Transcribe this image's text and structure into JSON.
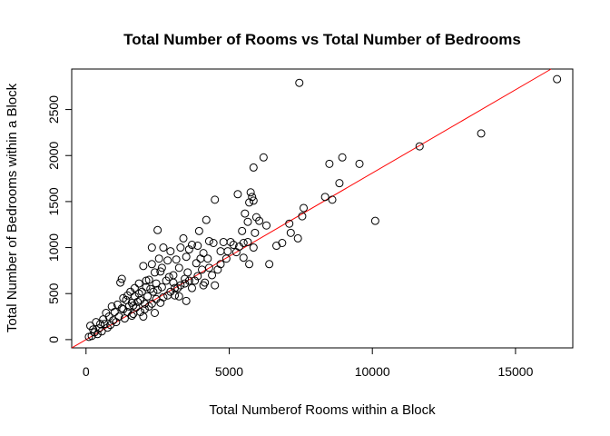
{
  "chart_data": {
    "type": "scatter",
    "title": "Total Number of Rooms vs Total Number of Bedrooms",
    "xlabel": "Total Numberof Rooms within a Block",
    "ylabel": "Total Number of Bedrooms within a Block",
    "xlim": [
      -500,
      17000
    ],
    "ylim": [
      -90,
      2940
    ],
    "xticks": [
      0,
      5000,
      10000,
      15000
    ],
    "yticks": [
      0,
      500,
      1000,
      1500,
      2000,
      2500
    ],
    "grid": false,
    "legend": "none",
    "marker": "open-circle",
    "points": [
      [
        16450,
        2830
      ],
      [
        13800,
        2240
      ],
      [
        11650,
        2100
      ],
      [
        7450,
        2790
      ],
      [
        9550,
        1910
      ],
      [
        8950,
        1980
      ],
      [
        8500,
        1910
      ],
      [
        8850,
        1700
      ],
      [
        8600,
        1520
      ],
      [
        8350,
        1550
      ],
      [
        10100,
        1290
      ],
      [
        7600,
        1430
      ],
      [
        7550,
        1340
      ],
      [
        7400,
        1100
      ],
      [
        7100,
        1260
      ],
      [
        7150,
        1160
      ],
      [
        6850,
        1050
      ],
      [
        6650,
        1020
      ],
      [
        6400,
        820
      ],
      [
        6200,
        1980
      ],
      [
        5850,
        1870
      ],
      [
        6300,
        1240
      ],
      [
        5950,
        1330
      ],
      [
        6050,
        1290
      ],
      [
        5300,
        1580
      ],
      [
        5750,
        1600
      ],
      [
        5800,
        1550
      ],
      [
        5850,
        1510
      ],
      [
        5700,
        1490
      ],
      [
        5900,
        1160
      ],
      [
        5850,
        1000
      ],
      [
        5650,
        1280
      ],
      [
        5550,
        1370
      ],
      [
        5450,
        1180
      ],
      [
        5650,
        1060
      ],
      [
        5500,
        890
      ],
      [
        5700,
        820
      ],
      [
        5500,
        1050
      ],
      [
        5350,
        1010
      ],
      [
        5250,
        950
      ],
      [
        5150,
        1030
      ],
      [
        5050,
        1060
      ],
      [
        4950,
        960
      ],
      [
        4900,
        880
      ],
      [
        4800,
        1060
      ],
      [
        4700,
        820
      ],
      [
        4600,
        760
      ],
      [
        4500,
        1520
      ],
      [
        4450,
        1050
      ],
      [
        4400,
        700
      ],
      [
        4200,
        1300
      ],
      [
        4300,
        1070
      ],
      [
        4250,
        880
      ],
      [
        4150,
        620
      ],
      [
        4100,
        940
      ],
      [
        4050,
        760
      ],
      [
        3950,
        1180
      ],
      [
        3900,
        1020
      ],
      [
        3850,
        830
      ],
      [
        3800,
        640
      ],
      [
        3700,
        1030
      ],
      [
        3600,
        980
      ],
      [
        3550,
        730
      ],
      [
        3500,
        900
      ],
      [
        3450,
        610
      ],
      [
        3400,
        1100
      ],
      [
        3300,
        1000
      ],
      [
        3250,
        780
      ],
      [
        3200,
        560
      ],
      [
        3150,
        870
      ],
      [
        3050,
        700
      ],
      [
        2950,
        960
      ],
      [
        2950,
        520
      ],
      [
        2850,
        860
      ],
      [
        2800,
        640
      ],
      [
        2700,
        1000
      ],
      [
        2650,
        780
      ],
      [
        2550,
        880
      ],
      [
        2500,
        1190
      ],
      [
        2450,
        610
      ],
      [
        2400,
        730
      ],
      [
        2300,
        820
      ],
      [
        2350,
        520
      ],
      [
        2200,
        650
      ],
      [
        2150,
        470
      ],
      [
        2100,
        570
      ],
      [
        2050,
        390
      ],
      [
        1950,
        520
      ],
      [
        1900,
        430
      ],
      [
        1850,
        610
      ],
      [
        1750,
        350
      ],
      [
        1700,
        470
      ],
      [
        1650,
        280
      ],
      [
        1600,
        400
      ],
      [
        1550,
        520
      ],
      [
        1450,
        300
      ],
      [
        1400,
        430
      ],
      [
        1350,
        230
      ],
      [
        1300,
        330
      ],
      [
        1250,
        660
      ],
      [
        1200,
        620
      ],
      [
        1150,
        250
      ],
      [
        1100,
        380
      ],
      [
        1050,
        190
      ],
      [
        1000,
        300
      ],
      [
        950,
        210
      ],
      [
        900,
        360
      ],
      [
        850,
        160
      ],
      [
        800,
        250
      ],
      [
        750,
        130
      ],
      [
        700,
        290
      ],
      [
        650,
        170
      ],
      [
        600,
        220
      ],
      [
        550,
        90
      ],
      [
        500,
        170
      ],
      [
        450,
        120
      ],
      [
        400,
        60
      ],
      [
        350,
        190
      ],
      [
        300,
        80
      ],
      [
        250,
        110
      ],
      [
        200,
        40
      ],
      [
        150,
        150
      ],
      [
        100,
        30
      ],
      [
        1300,
        450
      ],
      [
        1500,
        360
      ],
      [
        1700,
        560
      ],
      [
        1900,
        300
      ],
      [
        2100,
        640
      ],
      [
        2300,
        390
      ],
      [
        2500,
        540
      ],
      [
        2700,
        460
      ],
      [
        2900,
        680
      ],
      [
        3100,
        480
      ],
      [
        3300,
        590
      ],
      [
        3500,
        420
      ],
      [
        3700,
        560
      ],
      [
        3900,
        690
      ],
      [
        4100,
        590
      ],
      [
        4300,
        780
      ],
      [
        4500,
        590
      ],
      [
        4700,
        960
      ],
      [
        1600,
        260
      ],
      [
        1800,
        410
      ],
      [
        2000,
        250
      ],
      [
        2200,
        360
      ],
      [
        2400,
        290
      ],
      [
        2600,
        400
      ],
      [
        1250,
        340
      ],
      [
        1450,
        480
      ],
      [
        1650,
        370
      ],
      [
        1850,
        500
      ],
      [
        2050,
        330
      ],
      [
        2250,
        550
      ],
      [
        2450,
        440
      ],
      [
        2650,
        570
      ],
      [
        2850,
        480
      ],
      [
        3050,
        620
      ],
      [
        3250,
        470
      ],
      [
        3450,
        660
      ],
      [
        2000,
        800
      ],
      [
        2300,
        1000
      ],
      [
        2600,
        740
      ],
      [
        3100,
        560
      ],
      [
        3600,
        640
      ],
      [
        4000,
        880
      ]
    ],
    "fit_line": {
      "intercept": 0,
      "slope": 0.181
    }
  }
}
